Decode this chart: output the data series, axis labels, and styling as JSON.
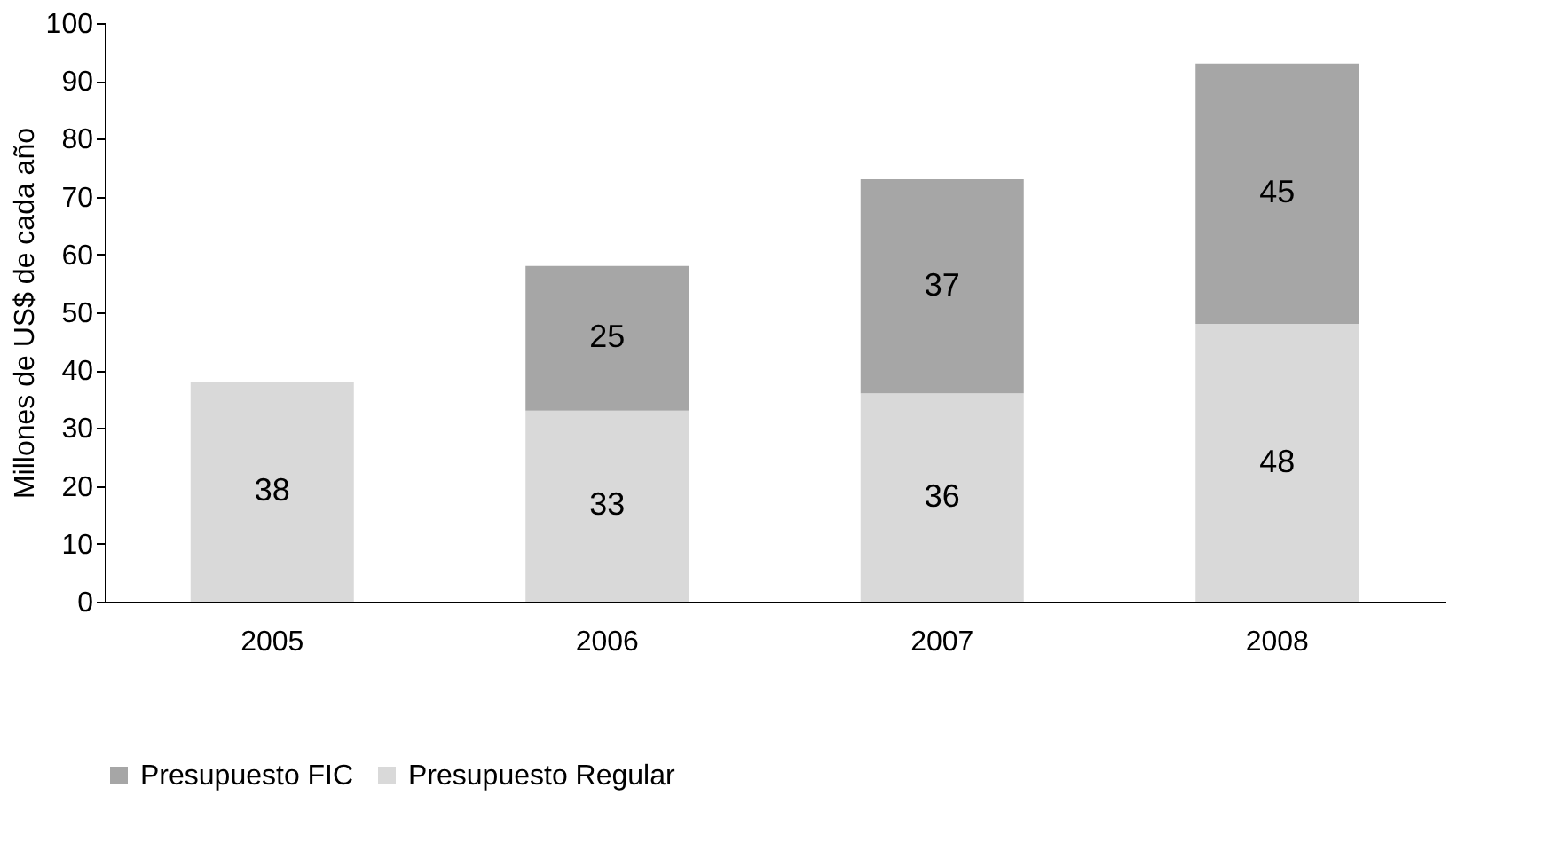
{
  "chart_data": {
    "type": "bar",
    "stacked": true,
    "ylabel": "Millones de US$ de cada año",
    "categories": [
      "2005",
      "2006",
      "2007",
      "2008"
    ],
    "series": [
      {
        "name": "Presupuesto Regular",
        "color": "#d9d9d9",
        "values": [
          38,
          33,
          36,
          48
        ]
      },
      {
        "name": "Presupuesto FIC",
        "color": "#a6a6a6",
        "values": [
          null,
          25,
          37,
          45
        ]
      }
    ],
    "ylim": [
      0,
      100
    ],
    "yticks": [
      0,
      10,
      20,
      30,
      40,
      50,
      60,
      70,
      80,
      90,
      100
    ],
    "data_labels": true,
    "grid": false,
    "legend": "bottom"
  }
}
